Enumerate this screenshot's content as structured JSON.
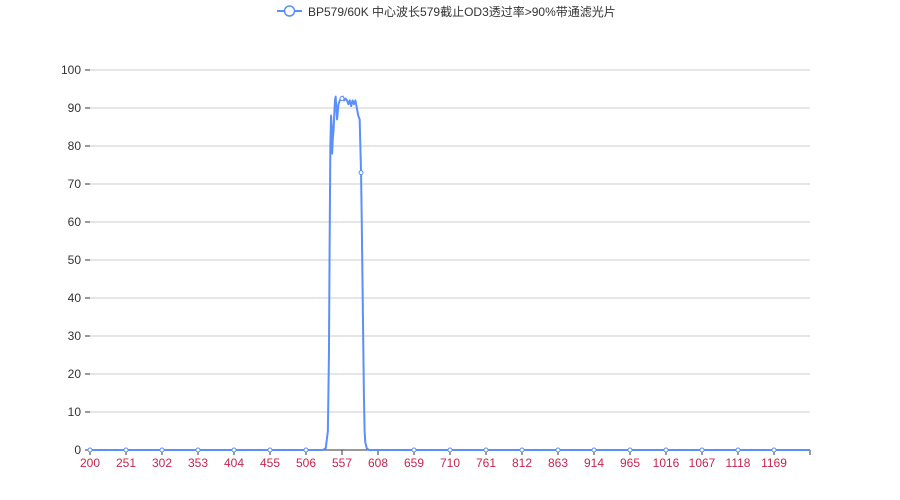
{
  "chart_data": {
    "type": "line",
    "title": "",
    "xlabel": "",
    "ylabel": "",
    "ylim": [
      0,
      100
    ],
    "xlim": [
      200,
      1220
    ],
    "yticks": [
      0,
      10,
      20,
      30,
      40,
      50,
      60,
      70,
      80,
      90,
      100
    ],
    "xticks": [
      "200",
      "251",
      "302",
      "353",
      "404",
      "455",
      "506",
      "557",
      "608",
      "659",
      "710",
      "761",
      "812",
      "863",
      "914",
      "965",
      "1016",
      "1067",
      "1118",
      "1169"
    ],
    "grid": true,
    "legend_position": "top-center",
    "colors": {
      "series": "#5b8ff9",
      "xtick_label": "#c7254e",
      "ytick_label": "#333333",
      "grid": "#cccccc",
      "axis": "#333333"
    },
    "series": [
      {
        "name": "BP579/60K 中心波长579截止OD3透过率>90%带通滤光片",
        "points": [
          [
            200,
            0
          ],
          [
            251,
            0
          ],
          [
            302,
            0
          ],
          [
            353,
            0
          ],
          [
            404,
            0
          ],
          [
            455,
            0
          ],
          [
            506,
            0
          ],
          [
            530,
            0
          ],
          [
            534,
            0.5
          ],
          [
            537,
            5
          ],
          [
            538.5,
            25
          ],
          [
            539.5,
            55
          ],
          [
            540.5,
            80
          ],
          [
            541.5,
            88
          ],
          [
            542.5,
            85
          ],
          [
            543,
            78
          ],
          [
            544,
            82
          ],
          [
            545,
            84
          ],
          [
            546,
            88
          ],
          [
            547,
            92
          ],
          [
            548,
            93
          ],
          [
            549,
            90
          ],
          [
            550,
            87
          ],
          [
            551,
            89
          ],
          [
            552,
            91
          ],
          [
            554,
            92
          ],
          [
            556,
            92.5
          ],
          [
            558,
            93
          ],
          [
            560,
            92
          ],
          [
            562,
            92.5
          ],
          [
            564,
            92
          ],
          [
            566,
            91
          ],
          [
            568,
            92
          ],
          [
            570,
            90.5
          ],
          [
            572,
            92
          ],
          [
            574,
            91
          ],
          [
            576,
            92
          ],
          [
            578,
            90
          ],
          [
            580,
            88
          ],
          [
            582,
            87
          ],
          [
            584,
            73
          ],
          [
            585,
            60
          ],
          [
            586,
            45
          ],
          [
            587,
            30
          ],
          [
            588,
            15
          ],
          [
            589,
            5
          ],
          [
            590,
            2
          ],
          [
            592,
            0.5
          ],
          [
            595,
            0
          ],
          [
            608,
            0
          ],
          [
            659,
            0
          ],
          [
            710,
            0
          ],
          [
            761,
            0
          ],
          [
            812,
            0
          ],
          [
            863,
            0
          ],
          [
            914,
            0
          ],
          [
            965,
            0
          ],
          [
            1016,
            0
          ],
          [
            1067,
            0
          ],
          [
            1118,
            0
          ],
          [
            1169,
            0
          ],
          [
            1220,
            0
          ]
        ],
        "markers": [
          [
            200,
            0
          ],
          [
            251,
            0
          ],
          [
            302,
            0
          ],
          [
            353,
            0
          ],
          [
            404,
            0
          ],
          [
            455,
            0
          ],
          [
            506,
            0
          ],
          [
            557,
            92.5
          ],
          [
            584,
            73
          ],
          [
            659,
            0
          ],
          [
            710,
            0
          ],
          [
            761,
            0
          ],
          [
            812,
            0
          ],
          [
            863,
            0
          ],
          [
            914,
            0
          ],
          [
            965,
            0
          ],
          [
            1016,
            0
          ],
          [
            1067,
            0
          ],
          [
            1118,
            0
          ],
          [
            1169,
            0
          ]
        ]
      }
    ]
  }
}
